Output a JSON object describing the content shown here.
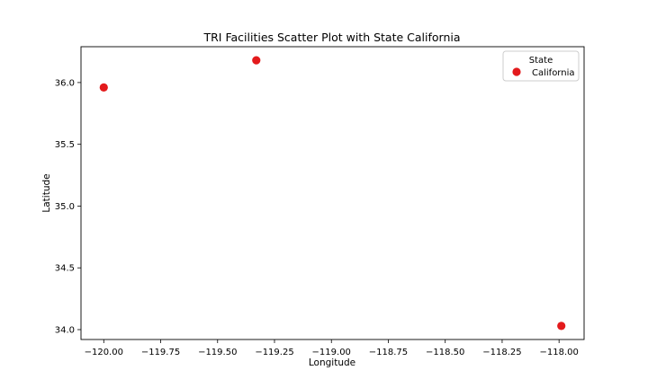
{
  "chart_data": {
    "type": "scatter",
    "title": "TRI Facilities Scatter Plot with State California",
    "xlabel": "Longitude",
    "ylabel": "Latitude",
    "xlim": [
      -120.1,
      -117.89
    ],
    "ylim": [
      33.92,
      36.29
    ],
    "x_ticks": [
      -120.0,
      -119.75,
      -119.5,
      -119.25,
      -119.0,
      -118.75,
      -118.5,
      -118.25,
      -118.0
    ],
    "x_tick_labels": [
      "−120.00",
      "−119.75",
      "−119.50",
      "−119.25",
      "−119.00",
      "−118.75",
      "−118.50",
      "−118.25",
      "−118.00"
    ],
    "y_ticks": [
      34.0,
      34.5,
      35.0,
      35.5,
      36.0
    ],
    "y_tick_labels": [
      "34.0",
      "34.5",
      "35.0",
      "35.5",
      "36.0"
    ],
    "grid": false,
    "legend": {
      "title": "State",
      "placement": "top-right",
      "entries": [
        "California"
      ]
    },
    "series": [
      {
        "name": "California",
        "color": "#e31a1c",
        "points": [
          {
            "x": -120.0,
            "y": 35.96
          },
          {
            "x": -119.33,
            "y": 36.18
          },
          {
            "x": -117.99,
            "y": 34.03
          }
        ]
      }
    ]
  }
}
